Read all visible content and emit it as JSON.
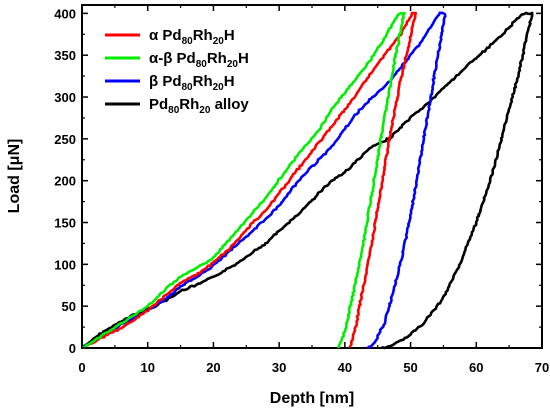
{
  "chart_data": {
    "type": "line",
    "title": "",
    "xlabel": "Depth [nm]",
    "ylabel": "Load [μN]",
    "xlim": [
      0,
      70
    ],
    "ylim": [
      0,
      410
    ],
    "xticks": [
      0,
      10,
      20,
      30,
      40,
      50,
      60,
      70
    ],
    "yticks": [
      0,
      50,
      100,
      150,
      200,
      250,
      300,
      350,
      400
    ],
    "grid": false,
    "legend_position": "top-left",
    "series": [
      {
        "name": "α Pd80Rh20H",
        "legend": {
          "prefix": "α Pd",
          "sub1": "80",
          "mid": "Rh",
          "sub2": "20",
          "suffix": "H"
        },
        "color": "#ff0000",
        "loading": [
          [
            0,
            0
          ],
          [
            3,
            12
          ],
          [
            6,
            24
          ],
          [
            10,
            45
          ],
          [
            13,
            64
          ],
          [
            15,
            78
          ],
          [
            18,
            90
          ],
          [
            20,
            102
          ],
          [
            23,
            123
          ],
          [
            26,
            150
          ],
          [
            28,
            165
          ],
          [
            30,
            185
          ],
          [
            33,
            215
          ],
          [
            36,
            245
          ],
          [
            38,
            265
          ],
          [
            41,
            295
          ],
          [
            43,
            318
          ],
          [
            45,
            340
          ],
          [
            47,
            360
          ],
          [
            48.5,
            375
          ],
          [
            49.5,
            390
          ],
          [
            50.3,
            400
          ]
        ],
        "hold": [
          [
            50.3,
            400
          ],
          [
            50.8,
            400
          ]
        ],
        "unloading": [
          [
            50.8,
            400
          ],
          [
            48.5,
            320
          ],
          [
            47,
            260
          ],
          [
            45.5,
            190
          ],
          [
            44,
            120
          ],
          [
            42.5,
            60
          ],
          [
            41.5,
            20
          ],
          [
            40.8,
            0
          ]
        ]
      },
      {
        "name": "α-β Pd80Rh20H",
        "legend": {
          "prefix": "α-β Pd",
          "sub1": "80",
          "mid": "Rh",
          "sub2": "20",
          "suffix": "H"
        },
        "color": "#00ee00",
        "loading": [
          [
            0,
            0
          ],
          [
            3,
            14
          ],
          [
            6,
            30
          ],
          [
            10,
            50
          ],
          [
            13,
            72
          ],
          [
            15,
            85
          ],
          [
            18,
            98
          ],
          [
            20,
            108
          ],
          [
            23,
            135
          ],
          [
            26,
            162
          ],
          [
            28,
            180
          ],
          [
            30,
            202
          ],
          [
            33,
            232
          ],
          [
            36,
            260
          ],
          [
            38,
            285
          ],
          [
            40,
            305
          ],
          [
            42,
            325
          ],
          [
            44,
            345
          ],
          [
            46,
            370
          ],
          [
            47.5,
            390
          ],
          [
            48.2,
            400
          ]
        ],
        "hold": [
          [
            48.2,
            400
          ],
          [
            49,
            400
          ]
        ],
        "unloading": [
          [
            49,
            400
          ],
          [
            47,
            320
          ],
          [
            45.5,
            250
          ],
          [
            44,
            180
          ],
          [
            42.5,
            110
          ],
          [
            41,
            55
          ],
          [
            40,
            20
          ],
          [
            39,
            0
          ]
        ]
      },
      {
        "name": "β Pd80Rh20H",
        "legend": {
          "prefix": "β Pd",
          "sub1": "80",
          "mid": "Rh",
          "sub2": "20",
          "suffix": "H"
        },
        "color": "#0000ff",
        "loading": [
          [
            0,
            0
          ],
          [
            3,
            14
          ],
          [
            6,
            28
          ],
          [
            10,
            45
          ],
          [
            13,
            60
          ],
          [
            15,
            73
          ],
          [
            18,
            88
          ],
          [
            20,
            98
          ],
          [
            23,
            120
          ],
          [
            26,
            140
          ],
          [
            28,
            155
          ],
          [
            30,
            170
          ],
          [
            33,
            200
          ],
          [
            36,
            225
          ],
          [
            38,
            240
          ],
          [
            40,
            262
          ],
          [
            42,
            282
          ],
          [
            44,
            298
          ],
          [
            46,
            312
          ],
          [
            48,
            330
          ],
          [
            50,
            350
          ],
          [
            52,
            370
          ],
          [
            53.5,
            390
          ],
          [
            54.5,
            400
          ]
        ],
        "hold": [
          [
            54.5,
            400
          ],
          [
            55.3,
            400
          ]
        ],
        "unloading": [
          [
            55.3,
            400
          ],
          [
            53.5,
            320
          ],
          [
            52,
            250
          ],
          [
            50.5,
            180
          ],
          [
            49,
            120
          ],
          [
            47.5,
            70
          ],
          [
            46,
            30
          ],
          [
            44.5,
            5
          ],
          [
            43.5,
            0
          ]
        ]
      },
      {
        "name": "Pd80Rh20 alloy",
        "legend": {
          "prefix": "Pd",
          "sub1": "80",
          "mid": "Rh",
          "sub2": "20",
          "suffix": " alloy"
        },
        "color": "#000000",
        "loading": [
          [
            0,
            0
          ],
          [
            3,
            18
          ],
          [
            6,
            32
          ],
          [
            8,
            40
          ],
          [
            10,
            46
          ],
          [
            13,
            58
          ],
          [
            15,
            68
          ],
          [
            18,
            77
          ],
          [
            20,
            85
          ],
          [
            23,
            98
          ],
          [
            26,
            115
          ],
          [
            28,
            125
          ],
          [
            30,
            140
          ],
          [
            33,
            160
          ],
          [
            36,
            185
          ],
          [
            38,
            200
          ],
          [
            40,
            210
          ],
          [
            42,
            225
          ],
          [
            44,
            240
          ],
          [
            45,
            243
          ],
          [
            47,
            252
          ],
          [
            50,
            275
          ],
          [
            53,
            295
          ],
          [
            56,
            318
          ],
          [
            59,
            340
          ],
          [
            62,
            360
          ],
          [
            64,
            375
          ],
          [
            66,
            392
          ],
          [
            67.2,
            400
          ]
        ],
        "hold": [
          [
            67.2,
            400
          ],
          [
            68.5,
            400
          ]
        ],
        "unloading": [
          [
            68.5,
            400
          ],
          [
            66.5,
            330
          ],
          [
            64.5,
            270
          ],
          [
            62.5,
            210
          ],
          [
            60,
            150
          ],
          [
            57.5,
            100
          ],
          [
            55,
            60
          ],
          [
            52,
            30
          ],
          [
            49,
            10
          ],
          [
            46,
            0
          ],
          [
            45.5,
            0
          ]
        ]
      }
    ]
  }
}
